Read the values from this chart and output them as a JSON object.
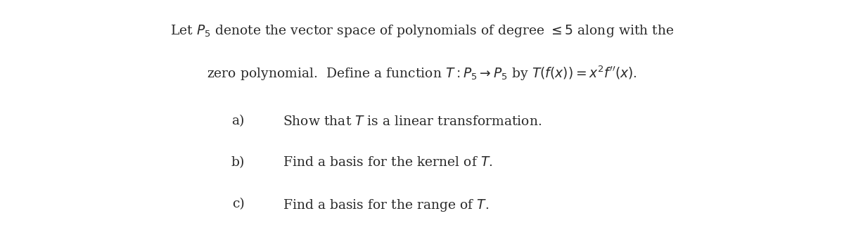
{
  "background_color": "#ffffff",
  "figsize": [
    12.0,
    3.27
  ],
  "dpi": 100,
  "line1": "Let $P_5$ denote the vector space of polynomials of degree $\\leq 5$ along with the",
  "line2": "zero polynomial.\\hspace{0.4em} Define a function $T : P_5 \\to P_5$ by $T(f(x)) = x^2 f''(x)$.",
  "item_a_label": "a)",
  "item_a_text": "Show that $T$ is a linear transformation.",
  "item_b_label": "b)",
  "item_b_text": "Find a basis for the kernel of $T$.",
  "item_c_label": "c)",
  "item_c_text": "Find a basis for the range of $T$.",
  "font_size_main": 13.5,
  "font_size_items": 13.5,
  "text_color": "#2b2b2b"
}
